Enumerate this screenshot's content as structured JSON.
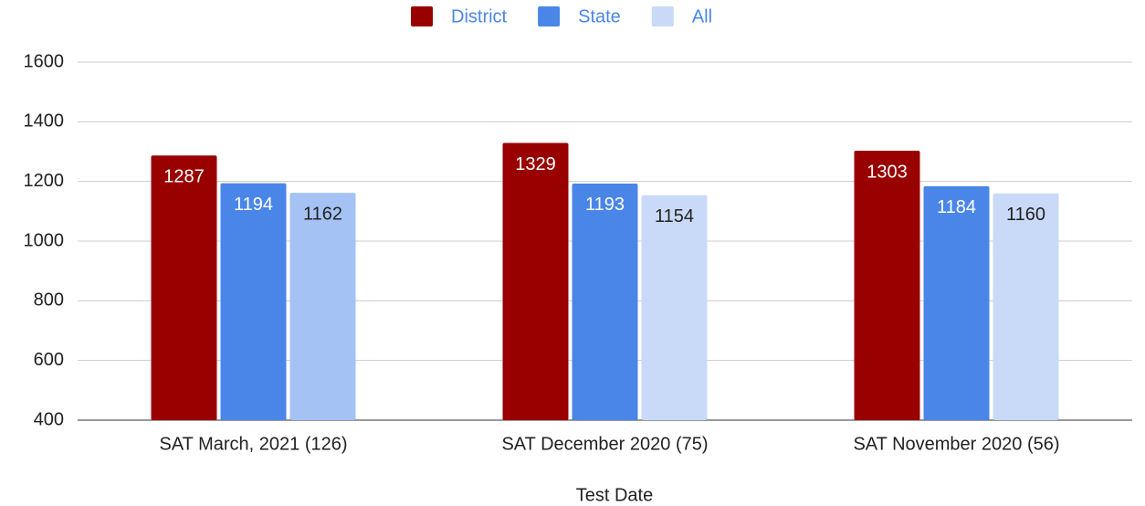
{
  "chart_data": {
    "type": "bar",
    "x_label": "Test Date",
    "categories": [
      "SAT March, 2021 (126)",
      "SAT December 2020 (75)",
      "SAT November 2020 (56)"
    ],
    "series": [
      {
        "name": "District",
        "color": "#990000",
        "values": [
          1287,
          1329,
          1303
        ]
      },
      {
        "name": "State",
        "color": "#4a86e8",
        "values": [
          1194,
          1193,
          1184
        ]
      },
      {
        "name": "All",
        "color": "#c9daf8",
        "colors": [
          "#a4c2f4",
          "#c9daf8",
          "#c9daf8"
        ],
        "values": [
          1162,
          1154,
          1160
        ]
      }
    ],
    "ylim": [
      400,
      1600
    ],
    "yticks": [
      400,
      600,
      800,
      1000,
      1200,
      1400,
      1600
    ],
    "grid": true,
    "legend": "top"
  }
}
